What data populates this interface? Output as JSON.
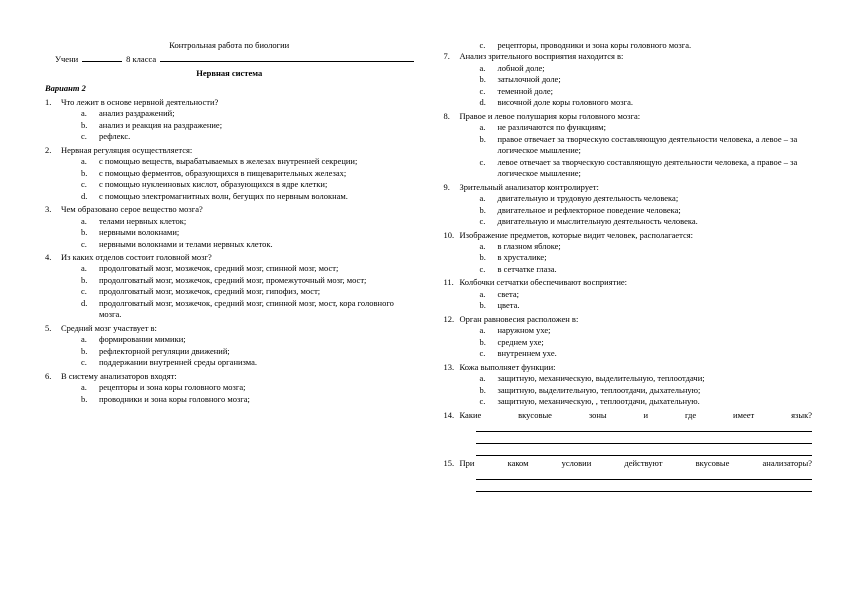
{
  "header": {
    "title": "Контрольная работа по биологии",
    "student_label": "Учени",
    "class_label": "8 класса",
    "subtitle": "Нервная система",
    "variant": "Вариант 2"
  },
  "left": [
    {
      "n": "1.",
      "q": "Что лежит в основе нервной деятельности?",
      "opts": [
        {
          "l": "a.",
          "t": "анализ раздражений;"
        },
        {
          "l": "b.",
          "t": "анализ и реакция на раздражение;"
        },
        {
          "l": "c.",
          "t": "рефлекс."
        }
      ]
    },
    {
      "n": "2.",
      "q": "Нервная регуляция осуществляется:",
      "opts": [
        {
          "l": "a.",
          "t": "с помощью веществ, вырабатываемых в железах внутренней секреции;"
        },
        {
          "l": "b.",
          "t": "с помощью ферментов, образующихся в пищеварительных железах;"
        },
        {
          "l": "c.",
          "t": "с помощью нуклеиновых кислот, образующихся в ядре клетки;"
        },
        {
          "l": "d.",
          "t": "с помощью электромагнитных волн, бегущих по нервным волокнам."
        }
      ]
    },
    {
      "n": "3.",
      "q": "Чем образовано серое вещество мозга?",
      "opts": [
        {
          "l": "a.",
          "t": "телами нервных клеток;"
        },
        {
          "l": "b.",
          "t": "нервными волокнами;"
        },
        {
          "l": "c.",
          "t": "нервными волокнами и телами нервных клеток."
        }
      ]
    },
    {
      "n": "4.",
      "q": "Из каких отделов состоит головной мозг?",
      "opts": [
        {
          "l": "a.",
          "t": "продолговатый мозг, мозжечок, средний мозг, спинной мозг, мост;"
        },
        {
          "l": "b.",
          "t": "продолговатый мозг, мозжечок, средний мозг, промежуточный мозг, мост;"
        },
        {
          "l": "c.",
          "t": "продолговатый мозг, мозжечок, средний мозг, гипофиз, мост;"
        },
        {
          "l": "d.",
          "t": "продолговатый мозг, мозжечок, средний мозг, спинной мозг, мост, кора головного мозга."
        }
      ]
    },
    {
      "n": "5.",
      "q": "Средний мозг участвует в:",
      "opts": [
        {
          "l": "a.",
          "t": "формировании мимики;"
        },
        {
          "l": "b.",
          "t": "рефлекторной регуляции движений;"
        },
        {
          "l": "c.",
          "t": "поддержании внутренней среды организма."
        }
      ]
    },
    {
      "n": "6.",
      "q": "В систему анализаторов входят:",
      "opts": [
        {
          "l": "a.",
          "t": "рецепторы и зона коры головного мозга;"
        },
        {
          "l": "b.",
          "t": "проводники и зона коры головного мозга;"
        }
      ]
    }
  ],
  "right_pre_opts": [
    {
      "l": "c.",
      "t": "рецепторы, проводники и зона коры головного мозга."
    }
  ],
  "right": [
    {
      "n": "7.",
      "q": "Анализ зрительного восприятия находится в:",
      "opts": [
        {
          "l": "a.",
          "t": "лобной доле;"
        },
        {
          "l": "b.",
          "t": "затылочной доле;"
        },
        {
          "l": "c.",
          "t": "теменной доле;"
        },
        {
          "l": "d.",
          "t": "височной доле коры головного мозга."
        }
      ]
    },
    {
      "n": "8.",
      "q": "Правое и левое полушария коры головного мозга:",
      "opts": [
        {
          "l": "a.",
          "t": "не различаются по функциям;"
        },
        {
          "l": "b.",
          "t": "правое отвечает за творческую составляющую деятельности человека, а левое – за логическое мышление;"
        },
        {
          "l": "c.",
          "t": "левое отвечает за творческую составляющую деятельности человека, а правое – за логическое мышление;"
        }
      ]
    },
    {
      "n": "9.",
      "q": "Зрительный анализатор контролирует:",
      "opts": [
        {
          "l": "a.",
          "t": "двигательную и трудовую деятельность человека;"
        },
        {
          "l": "b.",
          "t": "двигательное и рефлекторное поведение человека;"
        },
        {
          "l": "c.",
          "t": "двигательную и мыслительную деятельность человека."
        }
      ]
    },
    {
      "n": "10.",
      "q": "Изображение предметов, которые видит человек, располагается:",
      "opts": [
        {
          "l": "a.",
          "t": "в глазном яблоке;"
        },
        {
          "l": "b.",
          "t": "в хрусталике;"
        },
        {
          "l": "c.",
          "t": "в сетчатке глаза."
        }
      ]
    },
    {
      "n": "11.",
      "q": "Колбочки сетчатки обеспечивают восприятие:",
      "opts": [
        {
          "l": "a.",
          "t": "света;"
        },
        {
          "l": "b.",
          "t": "цвета."
        }
      ]
    },
    {
      "n": "12.",
      "q": "Орган равновесия расположен в:",
      "opts": [
        {
          "l": "a.",
          "t": "наружном ухе;"
        },
        {
          "l": "b.",
          "t": "среднем ухе;"
        },
        {
          "l": "c.",
          "t": "внутреннем ухе."
        }
      ]
    },
    {
      "n": "13.",
      "q": "Кожа выполняет функции:",
      "opts": [
        {
          "l": "a.",
          "t": "защитную, механическую, выделительную, теплоотдачи;"
        },
        {
          "l": "b.",
          "t": "защитную, выделительную, теплоотдачи, дыхательную;"
        },
        {
          "l": "c.",
          "t": "защитную, механическую, , теплоотдачи, дыхательную."
        }
      ]
    },
    {
      "n": "14.",
      "q": "Какие вкусовые зоны и где имеет язык?",
      "fill": 3
    },
    {
      "n": "15.",
      "q": "При каком условии действуют вкусовые анализаторы?",
      "fill": 2
    }
  ]
}
